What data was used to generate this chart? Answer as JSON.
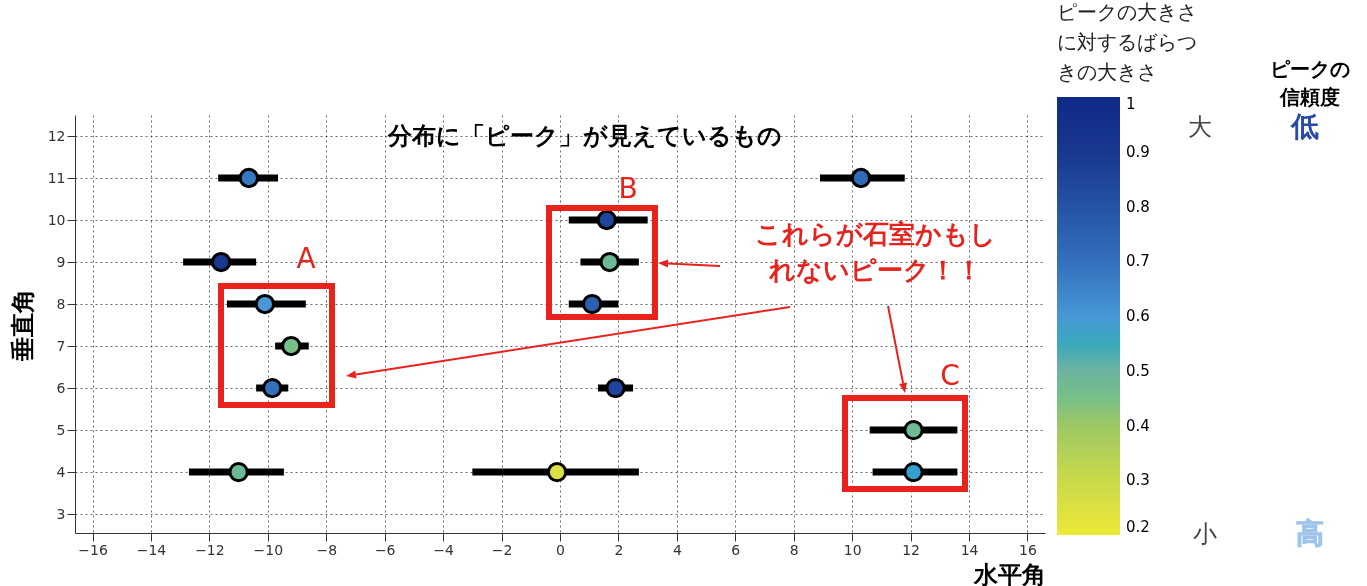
{
  "chart_data": {
    "type": "scatter",
    "title": "分布に「ピーク」が見えているもの",
    "xlabel": "水平角",
    "ylabel": "垂直角",
    "clabel": "ピークの大きさに対するばらつきの大きさ",
    "x": [
      -10.65,
      10.3,
      1.6,
      -11.6,
      1.7,
      -10.1,
      1.1,
      -9.2,
      -9.85,
      1.9,
      12.1,
      -11.0,
      -0.1,
      12.1
    ],
    "values": [
      11,
      11,
      10,
      9,
      9,
      8,
      8,
      7,
      6,
      6,
      5,
      4,
      4,
      4
    ],
    "xerrors": [
      [
        -11.7,
        -9.65
      ],
      [
        8.9,
        11.8
      ],
      [
        0.3,
        3.0
      ],
      [
        -12.9,
        -10.4
      ],
      [
        0.7,
        2.7
      ],
      [
        -11.4,
        -8.7
      ],
      [
        0.3,
        2.0
      ],
      [
        -9.75,
        -8.6
      ],
      [
        -10.4,
        -9.3
      ],
      [
        1.3,
        2.5
      ],
      [
        10.6,
        13.6
      ],
      [
        -12.7,
        -9.45
      ],
      [
        -3.0,
        2.7
      ],
      [
        10.7,
        13.6
      ]
    ],
    "cvalues": [
      0.68,
      0.72,
      0.85,
      0.9,
      0.48,
      0.6,
      0.75,
      0.45,
      0.7,
      0.85,
      0.47,
      0.48,
      0.25,
      0.58
    ],
    "clim": [
      0.2,
      1
    ],
    "cticks": [
      0.2,
      0.3,
      0.4,
      0.5,
      0.6,
      0.7,
      0.8,
      0.9,
      1
    ],
    "xlim": [
      -16.6,
      16.6
    ],
    "xticks": [
      -16,
      -14,
      -12,
      -10,
      -8,
      -6,
      -4,
      -2,
      0,
      2,
      4,
      6,
      8,
      10,
      12,
      14,
      16
    ],
    "ylim": [
      2.55,
      12.5
    ],
    "yticks": [
      3,
      4,
      5,
      6,
      7,
      8,
      9,
      10,
      11,
      12
    ],
    "grid": true,
    "marker": "circle",
    "annotations": [
      "A",
      "B",
      "C",
      "これらが石室かもしれないピーク！！",
      "大",
      "小",
      "ピークの信頼度",
      "低",
      "高"
    ]
  }
}
